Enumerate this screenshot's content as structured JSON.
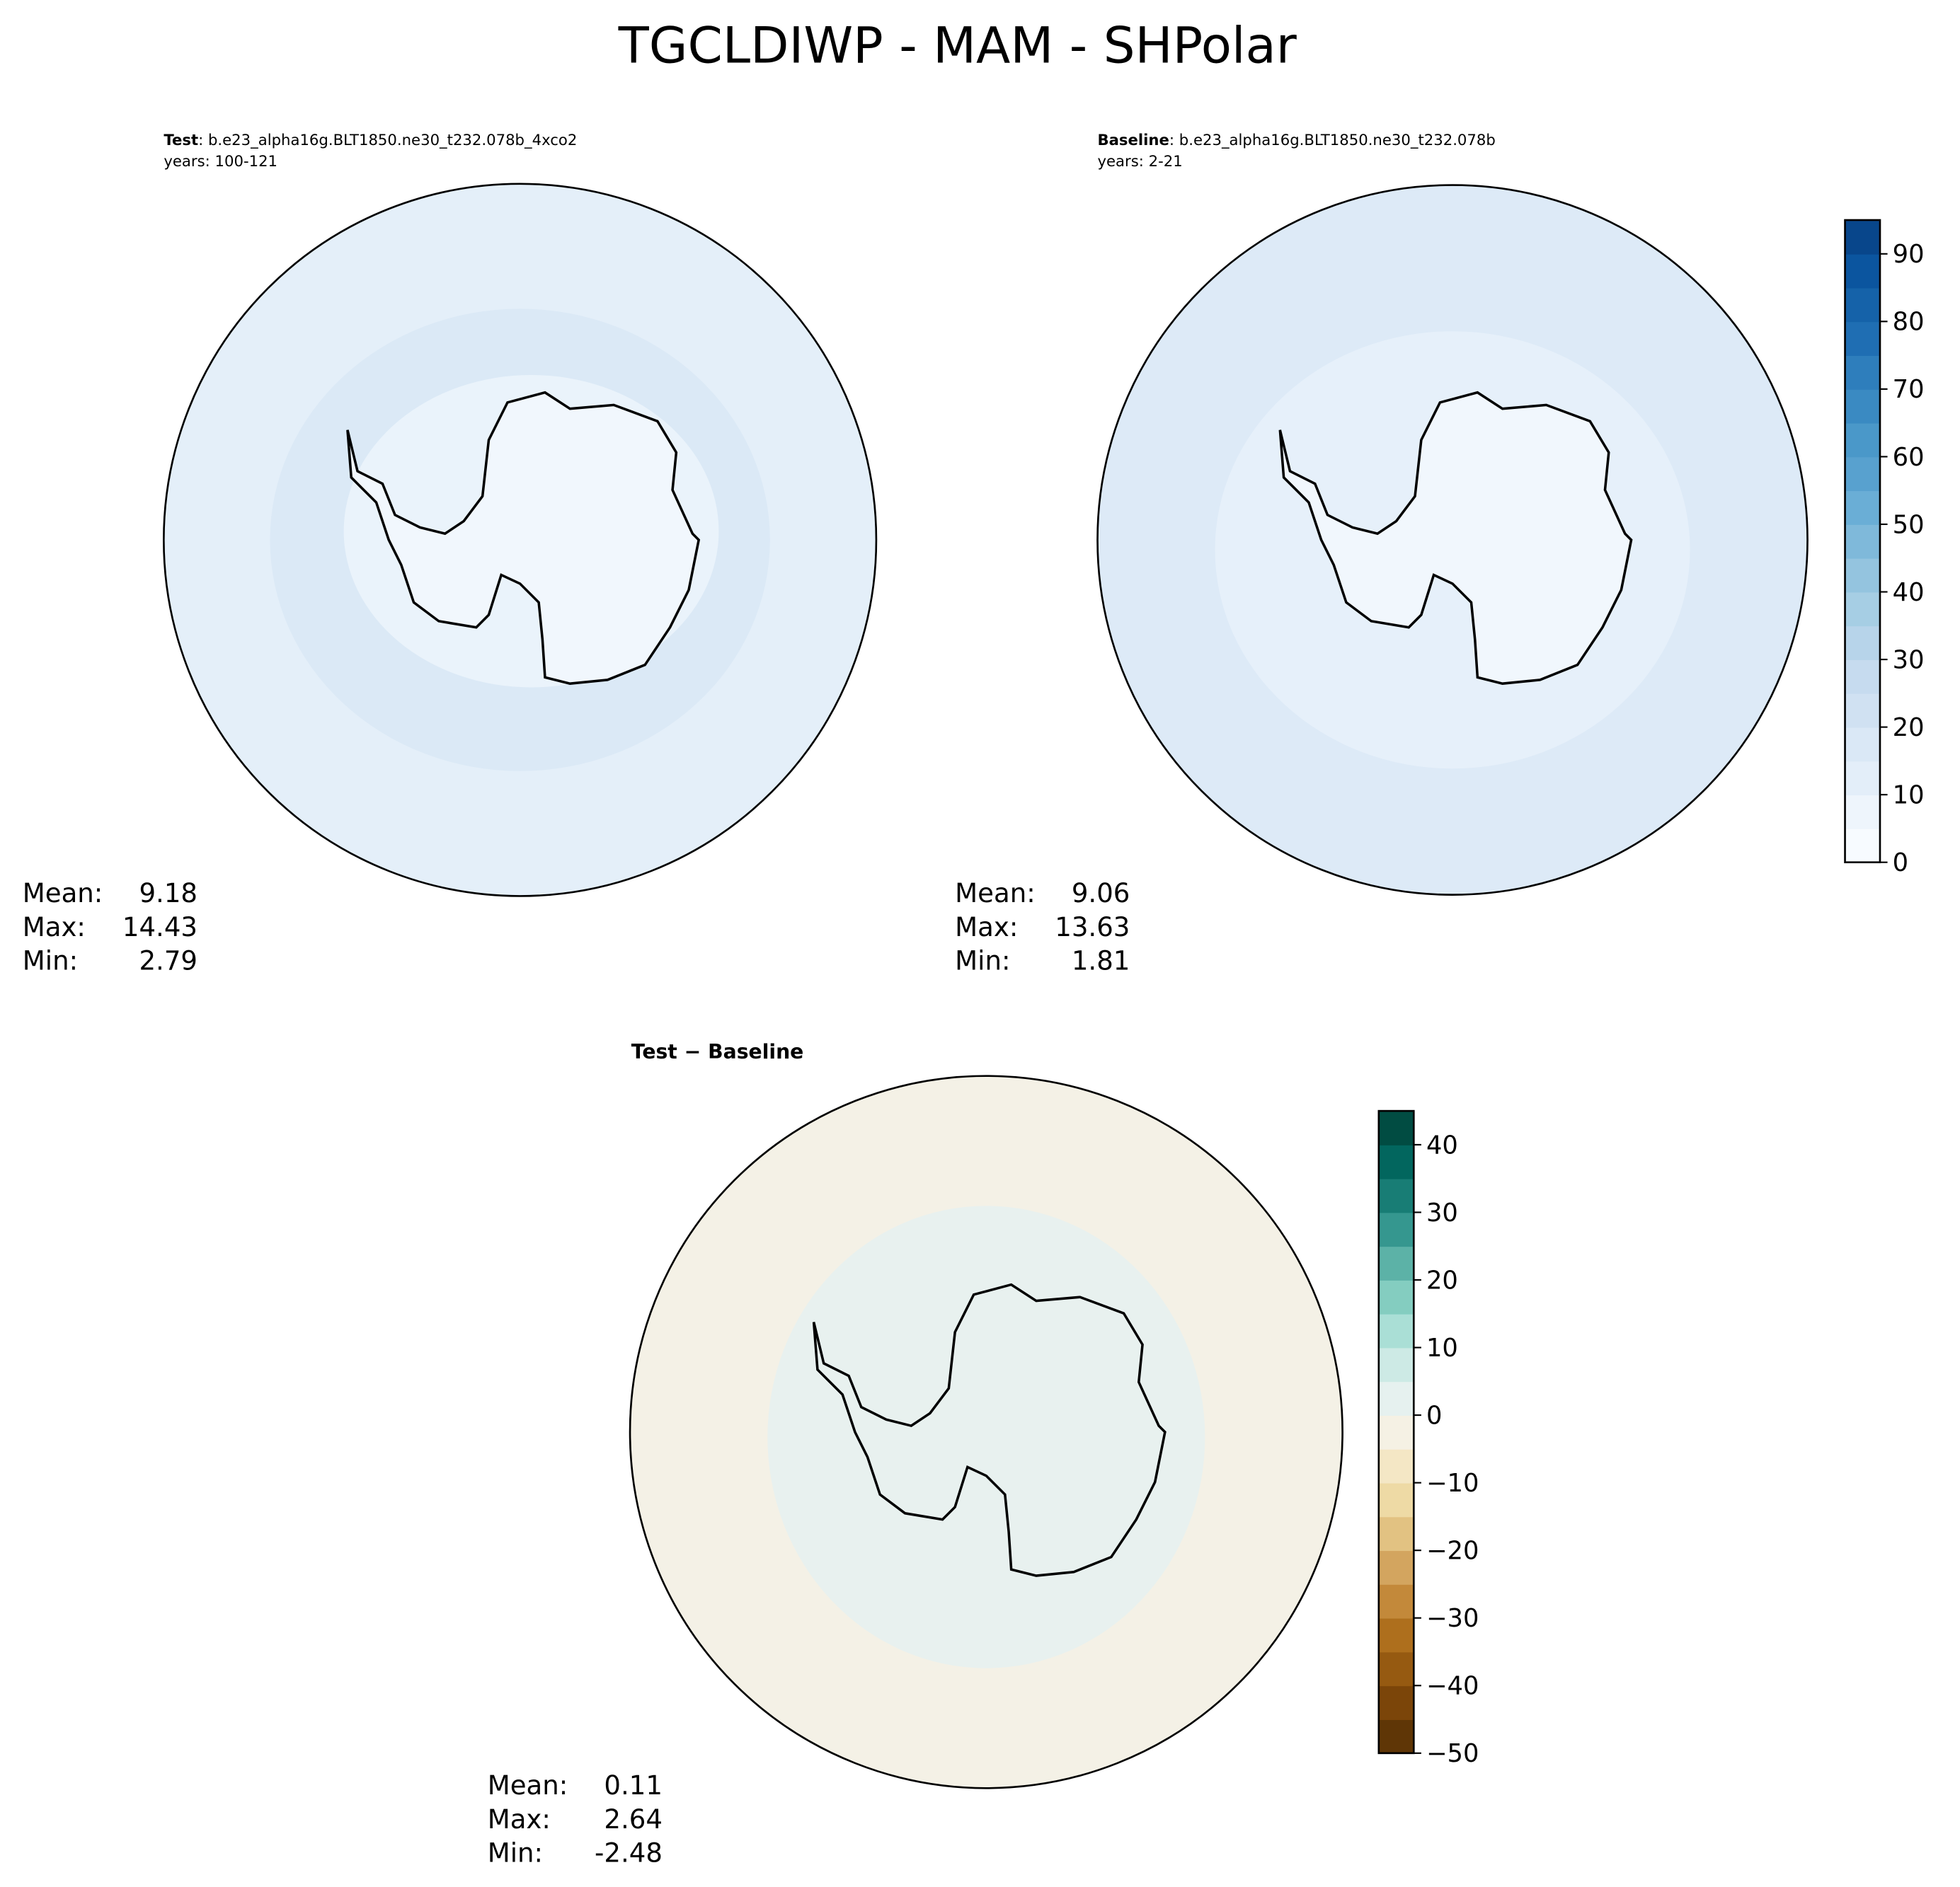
{
  "title": "TGCLDIWP - MAM - SHPolar",
  "panels": [
    {
      "label": "Test",
      "case": ": b.e23_alpha16g.BLT1850.ne30_t232.078b_4xco2",
      "years": "years: 100-121",
      "stats": [
        {
          "label": "Mean:",
          "value": 9.18
        },
        {
          "label": "Max:",
          "value": 14.43
        },
        {
          "label": "Min:",
          "value": 2.79
        }
      ]
    },
    {
      "label": "Baseline",
      "case": ": b.e23_alpha16g.BLT1850.ne30_t232.078b",
      "years": "years: 2-21",
      "stats": [
        {
          "label": "Mean:",
          "value": 9.06
        },
        {
          "label": "Max:",
          "value": 13.63
        },
        {
          "label": "Min:",
          "value": 1.81
        }
      ]
    },
    {
      "label": "Test − Baseline",
      "stats": [
        {
          "label": "Mean:",
          "value": 0.11
        },
        {
          "label": "Max:",
          "value": 2.64
        },
        {
          "label": "Min:",
          "value": -2.48
        }
      ]
    }
  ],
  "colorbars": [
    {
      "lim": [
        0,
        95
      ],
      "ticks": [
        0,
        10,
        20,
        30,
        40,
        50,
        60,
        70,
        80,
        90
      ],
      "colors": [
        "#f7fbff",
        "#eef5fc",
        "#e3eef9",
        "#dae8f6",
        "#d0e1f2",
        "#c6dbef",
        "#b7d4ea",
        "#a6cee4",
        "#94c4df",
        "#7fb9da",
        "#6aaed6",
        "#58a1cf",
        "#4a98c9",
        "#3a8ac2",
        "#2e7ebc",
        "#1f6eb3",
        "#1562a9",
        "#0b559f",
        "#08468b"
      ]
    },
    {
      "lim": [
        -50,
        45
      ],
      "ticks": [
        {
          "value": -50,
          "label": "−50"
        },
        {
          "value": -40,
          "label": "−40"
        },
        {
          "value": -30,
          "label": "−30"
        },
        {
          "value": -20,
          "label": "−20"
        },
        {
          "value": -10,
          "label": "−10"
        },
        0,
        10,
        20,
        30,
        40
      ],
      "colors": [
        "#5f3606",
        "#7b4509",
        "#965a11",
        "#ae6f1d",
        "#c3893a",
        "#d3a55f",
        "#e2c282",
        "#eedaa5",
        "#f4e7c5",
        "#f5f1e4",
        "#e6f1ef",
        "#cdeae5",
        "#aadfd6",
        "#84cdc0",
        "#5cb2a7",
        "#35978f",
        "#187d75",
        "#02665e",
        "#014c42"
      ]
    }
  ]
}
